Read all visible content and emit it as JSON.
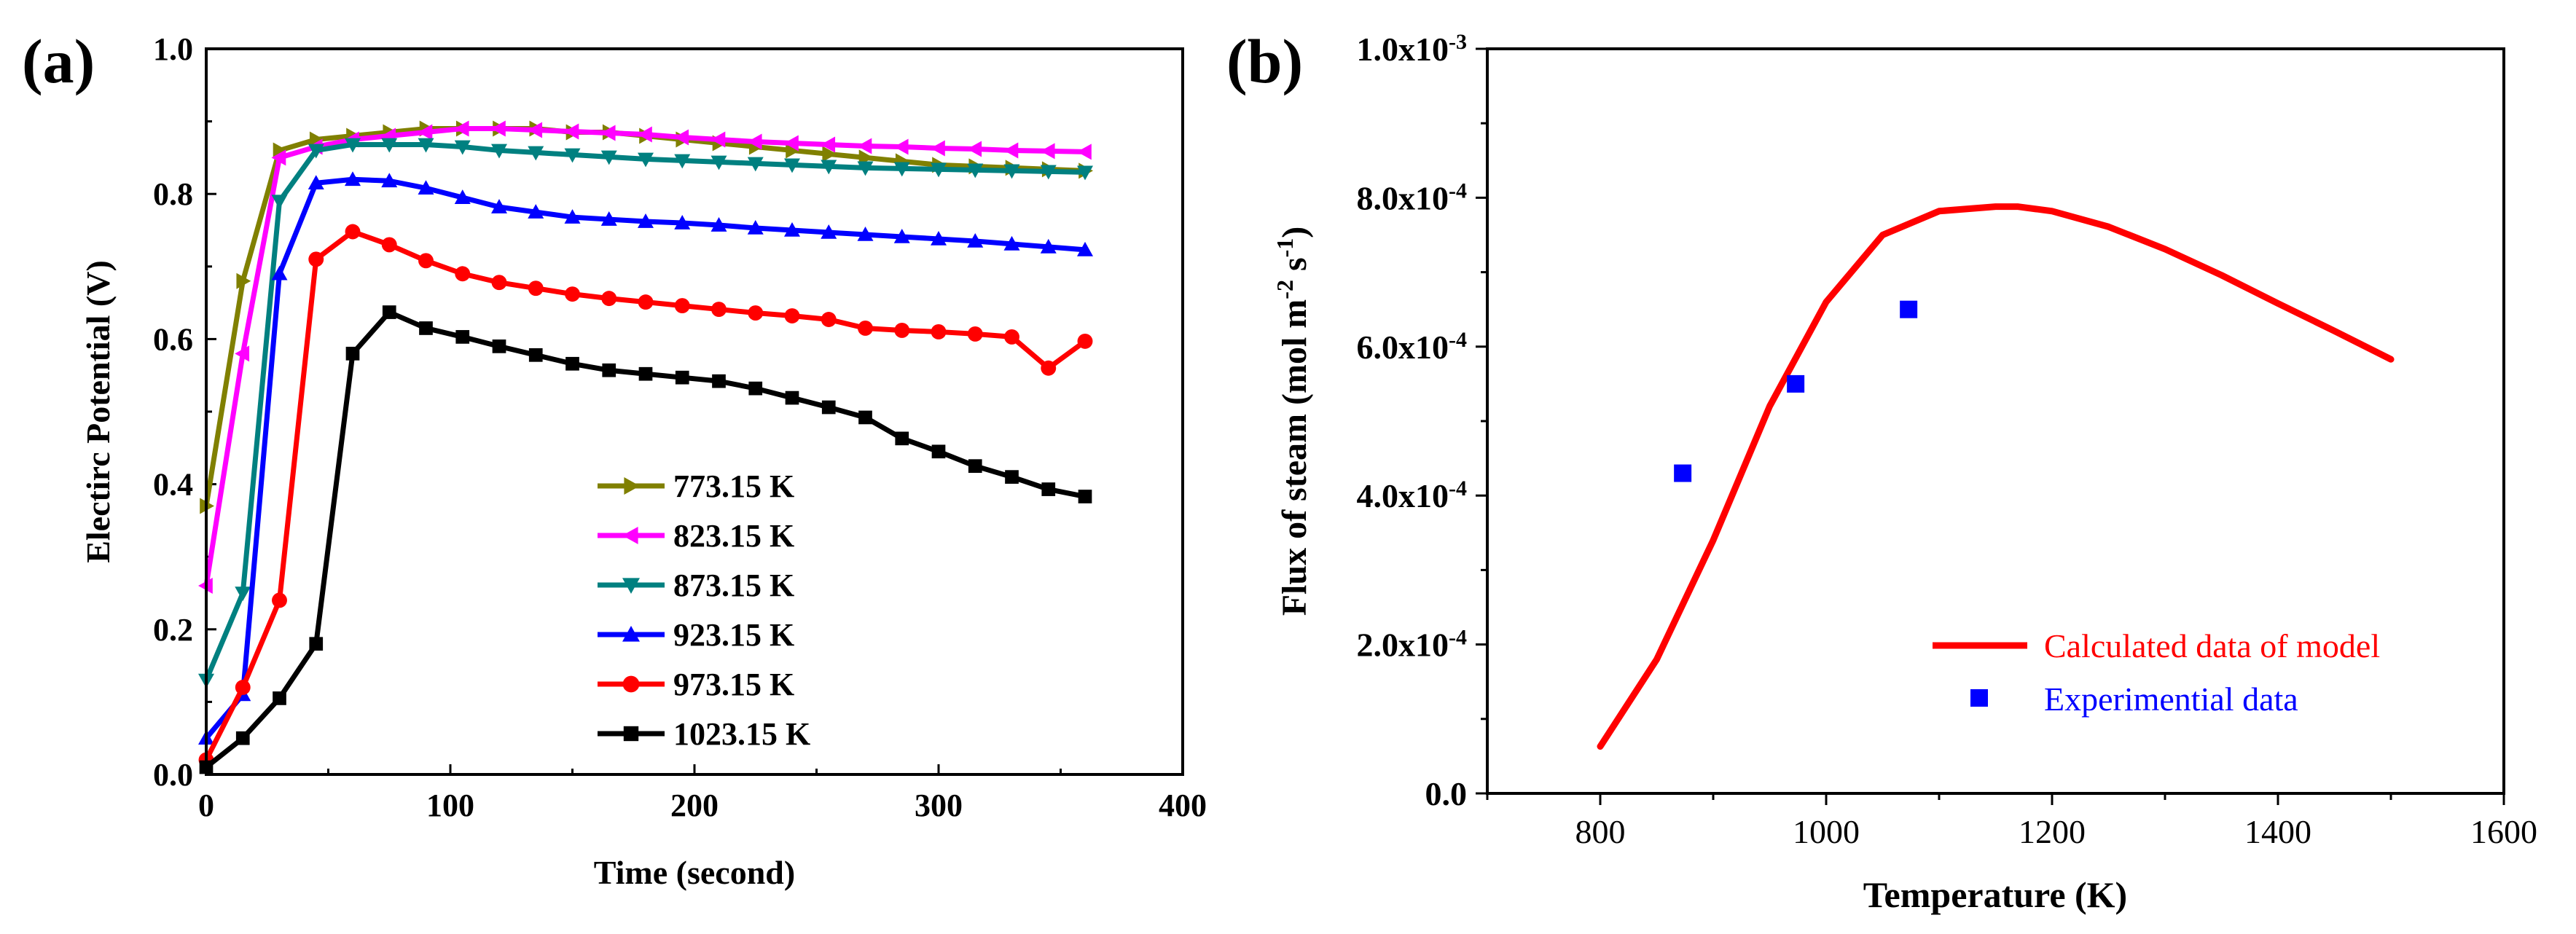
{
  "panels": {
    "a": {
      "label": "(a)"
    },
    "b": {
      "label": "(b)"
    }
  },
  "chart_data": [
    {
      "type": "line",
      "panel": "(a)",
      "title": "",
      "xlabel": "Time (second)",
      "ylabel": "Electirc Potential (V)",
      "xlim": [
        0,
        400
      ],
      "ylim": [
        0,
        1.0
      ],
      "xticks": [
        0,
        100,
        200,
        300,
        400
      ],
      "yticks": [
        0.0,
        0.2,
        0.4,
        0.6,
        0.8,
        1.0
      ],
      "xtick_labels": [
        "0",
        "100",
        "200",
        "300",
        "400"
      ],
      "ytick_labels": [
        "0.0",
        "0.2",
        "0.4",
        "0.6",
        "0.8",
        "1.0"
      ],
      "legend_position": "bottom-right",
      "series": [
        {
          "name": "773.15 K",
          "color": "#808000",
          "marker": "triangle-right",
          "x": [
            0,
            15,
            30,
            45,
            60,
            75,
            90,
            105,
            120,
            135,
            150,
            165,
            180,
            195,
            210,
            225,
            240,
            255,
            270,
            285,
            300,
            315,
            330,
            345,
            360
          ],
          "y": [
            0.37,
            0.68,
            0.86,
            0.875,
            0.88,
            0.885,
            0.89,
            0.89,
            0.89,
            0.89,
            0.885,
            0.885,
            0.88,
            0.875,
            0.87,
            0.865,
            0.86,
            0.855,
            0.85,
            0.845,
            0.84,
            0.838,
            0.836,
            0.834,
            0.832
          ]
        },
        {
          "name": "823.15 K",
          "color": "#ff00ff",
          "marker": "triangle-left",
          "x": [
            0,
            15,
            30,
            45,
            60,
            75,
            90,
            105,
            120,
            135,
            150,
            165,
            180,
            195,
            210,
            225,
            240,
            255,
            270,
            285,
            300,
            315,
            330,
            345,
            360
          ],
          "y": [
            0.26,
            0.58,
            0.85,
            0.865,
            0.875,
            0.88,
            0.885,
            0.89,
            0.89,
            0.888,
            0.886,
            0.884,
            0.882,
            0.878,
            0.875,
            0.872,
            0.87,
            0.868,
            0.866,
            0.865,
            0.863,
            0.862,
            0.86,
            0.859,
            0.858
          ]
        },
        {
          "name": "873.15 K",
          "color": "#008080",
          "marker": "triangle-down",
          "x": [
            0,
            15,
            30,
            45,
            60,
            75,
            90,
            105,
            120,
            135,
            150,
            165,
            180,
            195,
            210,
            225,
            240,
            255,
            270,
            285,
            300,
            315,
            330,
            345,
            360
          ],
          "y": [
            0.13,
            0.25,
            0.79,
            0.86,
            0.868,
            0.868,
            0.868,
            0.865,
            0.86,
            0.857,
            0.854,
            0.851,
            0.848,
            0.846,
            0.844,
            0.842,
            0.84,
            0.838,
            0.836,
            0.835,
            0.834,
            0.833,
            0.832,
            0.831,
            0.83
          ]
        },
        {
          "name": "923.15 K",
          "color": "#0000ff",
          "marker": "triangle-up",
          "x": [
            0,
            15,
            30,
            45,
            60,
            75,
            90,
            105,
            120,
            135,
            150,
            165,
            180,
            195,
            210,
            225,
            240,
            255,
            270,
            285,
            300,
            315,
            330,
            345,
            360
          ],
          "y": [
            0.05,
            0.11,
            0.69,
            0.815,
            0.82,
            0.818,
            0.808,
            0.795,
            0.782,
            0.775,
            0.768,
            0.765,
            0.762,
            0.76,
            0.757,
            0.753,
            0.75,
            0.747,
            0.744,
            0.741,
            0.738,
            0.735,
            0.731,
            0.727,
            0.723
          ]
        },
        {
          "name": "973.15 K",
          "color": "#ff0000",
          "marker": "circle",
          "x": [
            0,
            15,
            30,
            45,
            60,
            75,
            90,
            105,
            120,
            135,
            150,
            165,
            180,
            195,
            210,
            225,
            240,
            255,
            270,
            285,
            300,
            315,
            330,
            345,
            360
          ],
          "y": [
            0.02,
            0.12,
            0.24,
            0.71,
            0.748,
            0.73,
            0.708,
            0.69,
            0.678,
            0.67,
            0.662,
            0.656,
            0.651,
            0.646,
            0.641,
            0.636,
            0.632,
            0.627,
            0.615,
            0.612,
            0.61,
            0.607,
            0.603,
            0.56,
            0.597
          ]
        },
        {
          "name": "1023.15 K",
          "color": "#000000",
          "marker": "square",
          "x": [
            0,
            15,
            30,
            45,
            60,
            75,
            90,
            105,
            120,
            135,
            150,
            165,
            180,
            195,
            210,
            225,
            240,
            255,
            270,
            285,
            300,
            315,
            330,
            345,
            360
          ],
          "y": [
            0.01,
            0.05,
            0.105,
            0.18,
            0.58,
            0.637,
            0.615,
            0.603,
            0.59,
            0.578,
            0.566,
            0.557,
            0.552,
            0.547,
            0.542,
            0.532,
            0.519,
            0.506,
            0.492,
            0.463,
            0.445,
            0.425,
            0.41,
            0.393,
            0.383
          ]
        }
      ]
    },
    {
      "type": "line",
      "panel": "(b)",
      "title": "",
      "xlabel": "Temperature (K)",
      "ylabel": "Flux of steam (mol m-2 s-1)",
      "ylabel_parts": {
        "lead": "Flux of steam (mol m",
        "exp1": "-2",
        "mid": " s",
        "exp2": "-1",
        "tail": ")"
      },
      "xlim": [
        700,
        1600
      ],
      "ylim": [
        0,
        0.001
      ],
      "xticks": [
        800,
        1000,
        1200,
        1400,
        1600
      ],
      "yticks": [
        0,
        0.0002,
        0.0004,
        0.0006,
        0.0008,
        0.001
      ],
      "xtick_labels": [
        "800",
        "1000",
        "1200",
        "1400",
        "1600"
      ],
      "ytick_labels": [
        {
          "mant": "0.0",
          "exp": ""
        },
        {
          "mant": "2.0x10",
          "exp": "-4"
        },
        {
          "mant": "4.0x10",
          "exp": "-4"
        },
        {
          "mant": "6.0x10",
          "exp": "-4"
        },
        {
          "mant": "8.0x10",
          "exp": "-4"
        },
        {
          "mant": "1.0x10",
          "exp": "-3"
        }
      ],
      "legend_position": "bottom-right",
      "series": [
        {
          "name": "Calculated data of model",
          "color": "#ff0000",
          "style": "line",
          "x": [
            800,
            850,
            900,
            950,
            1000,
            1050,
            1100,
            1150,
            1170,
            1200,
            1250,
            1300,
            1350,
            1400,
            1450,
            1500
          ],
          "y": [
            6.3e-05,
            0.00018,
            0.00034,
            0.00052,
            0.00066,
            0.00075,
            0.000782,
            0.000788,
            0.000788,
            0.000782,
            0.000761,
            0.000731,
            0.000696,
            0.000658,
            0.000621,
            0.000583
          ]
        },
        {
          "name": "Experimential data",
          "color": "#0000ff",
          "style": "square",
          "x": [
            873,
            973,
            1073
          ],
          "y": [
            0.00043,
            0.00055,
            0.00065
          ]
        }
      ]
    }
  ]
}
